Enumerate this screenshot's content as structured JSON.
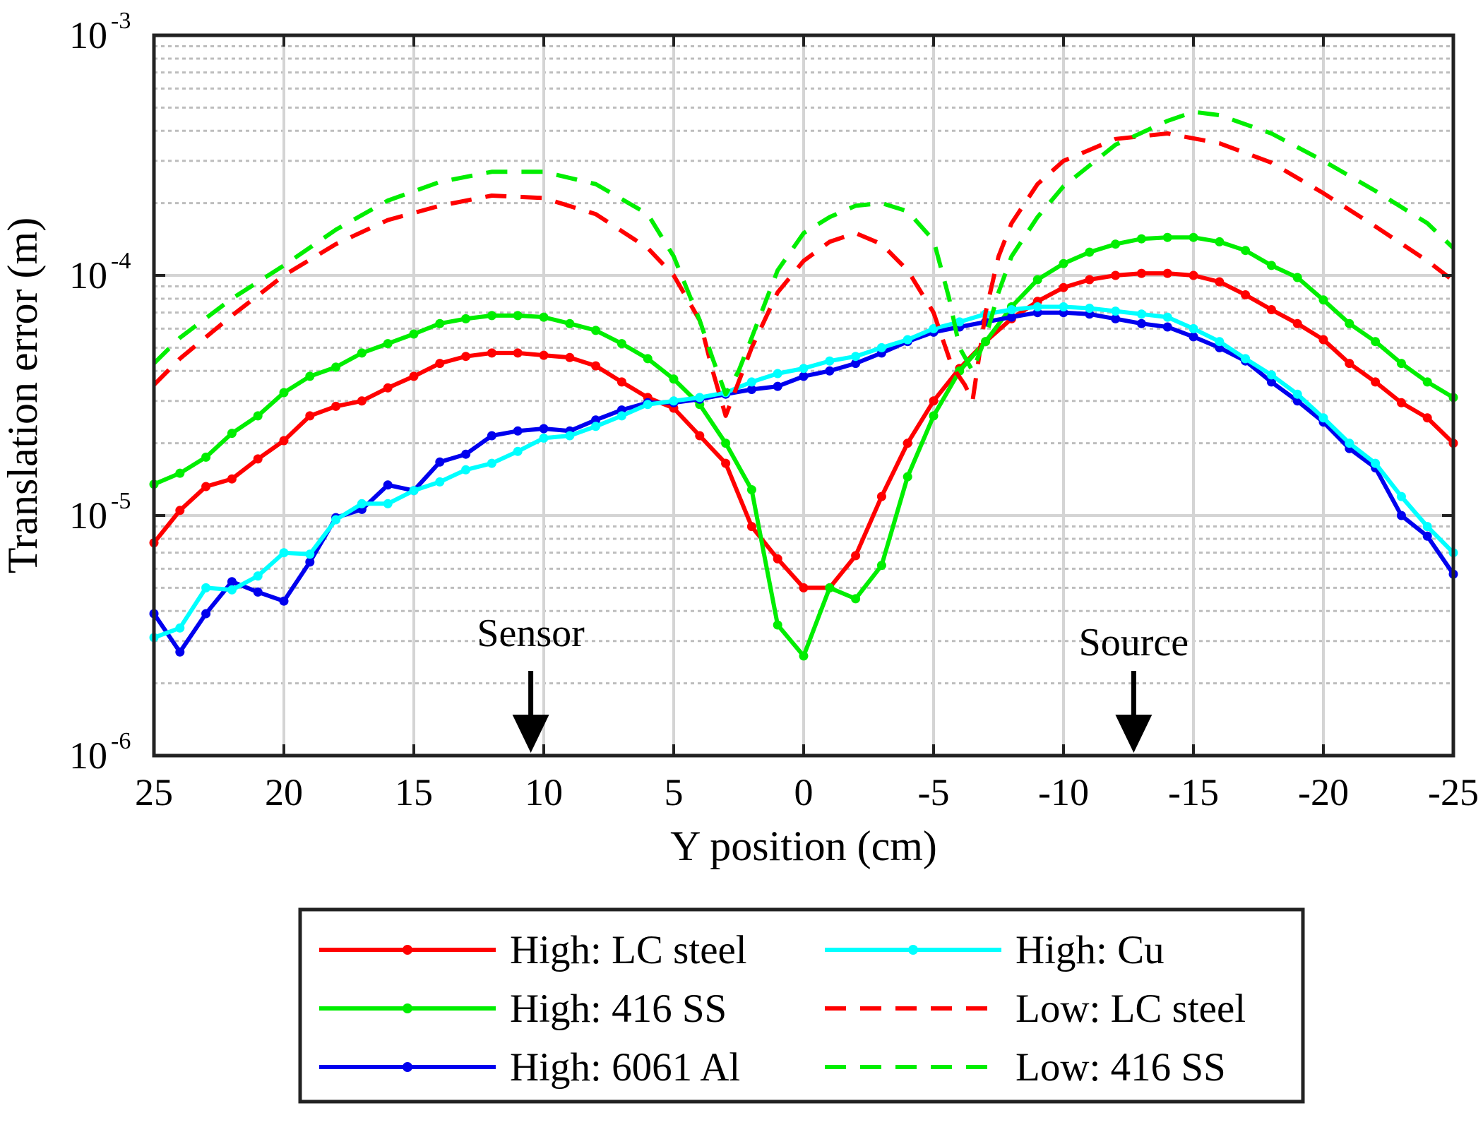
{
  "chart_data": {
    "type": "line",
    "xlabel": "Y position (cm)",
    "ylabel": "Translation error (m)",
    "x_reversed": true,
    "xlim": [
      25,
      -25
    ],
    "ylim": [
      1e-06,
      0.001
    ],
    "y_scale": "log",
    "grid": true,
    "legend_placement": "below plot, two columns",
    "x_ticks": [
      "25",
      "20",
      "15",
      "10",
      "5",
      "0",
      "-5",
      "-10",
      "-15",
      "-20",
      "-25"
    ],
    "x_tick_values": [
      25,
      20,
      15,
      10,
      5,
      0,
      -5,
      -10,
      -15,
      -20,
      -25
    ],
    "y_ticks": [
      {
        "base": "10",
        "exp": "-3",
        "value": 0.001
      },
      {
        "base": "10",
        "exp": "-4",
        "value": 0.0001
      },
      {
        "base": "10",
        "exp": "-5",
        "value": 1e-05
      },
      {
        "base": "10",
        "exp": "-6",
        "value": 1e-06
      }
    ],
    "annotations": [
      {
        "text": "Sensor",
        "x": 10.5
      },
      {
        "text": "Source",
        "x": -12.7
      }
    ],
    "series": [
      {
        "name": "High: LC steel",
        "color": "#ff0000",
        "style": "solid-marker",
        "x": [
          25,
          24,
          23,
          22,
          21,
          20,
          19,
          18,
          17,
          16,
          15,
          14,
          13,
          12,
          11,
          10,
          9,
          8,
          7,
          6,
          5,
          4,
          3,
          2,
          1,
          0,
          -1,
          -2,
          -3,
          -4,
          -5,
          -6,
          -7,
          -8,
          -9,
          -10,
          -11,
          -12,
          -13,
          -14,
          -15,
          -16,
          -17,
          -18,
          -19,
          -20,
          -21,
          -22,
          -23,
          -24,
          -25
        ],
        "y": [
          7.7e-06,
          1.05e-05,
          1.32e-05,
          1.42e-05,
          1.72e-05,
          2.05e-05,
          2.6e-05,
          2.85e-05,
          3e-05,
          3.4e-05,
          3.8e-05,
          4.3e-05,
          4.6e-05,
          4.75e-05,
          4.75e-05,
          4.65e-05,
          4.55e-05,
          4.2e-05,
          3.6e-05,
          3.1e-05,
          2.8e-05,
          2.15e-05,
          1.65e-05,
          9e-06,
          6.6e-06,
          5e-06,
          5e-06,
          6.8e-06,
          1.2e-05,
          2e-05,
          3e-05,
          4.1e-05,
          5.3e-05,
          6.6e-05,
          7.8e-05,
          8.9e-05,
          9.6e-05,
          0.0001,
          0.000102,
          0.000102,
          0.0001,
          9.4e-05,
          8.3e-05,
          7.2e-05,
          6.3e-05,
          5.4e-05,
          4.3e-05,
          3.6e-05,
          2.95e-05,
          2.55e-05,
          2e-05
        ]
      },
      {
        "name": "High: 416 SS",
        "color": "#00ee00",
        "style": "solid-marker",
        "x": [
          25,
          24,
          23,
          22,
          21,
          20,
          19,
          18,
          17,
          16,
          15,
          14,
          13,
          12,
          11,
          10,
          9,
          8,
          7,
          6,
          5,
          4,
          3,
          2,
          1,
          0,
          -1,
          -2,
          -3,
          -4,
          -5,
          -6,
          -7,
          -8,
          -9,
          -10,
          -11,
          -12,
          -13,
          -14,
          -15,
          -16,
          -17,
          -18,
          -19,
          -20,
          -21,
          -22,
          -23,
          -24,
          -25
        ],
        "y": [
          1.35e-05,
          1.5e-05,
          1.75e-05,
          2.2e-05,
          2.6e-05,
          3.25e-05,
          3.8e-05,
          4.15e-05,
          4.75e-05,
          5.2e-05,
          5.7e-05,
          6.3e-05,
          6.6e-05,
          6.8e-05,
          6.8e-05,
          6.7e-05,
          6.3e-05,
          5.9e-05,
          5.2e-05,
          4.5e-05,
          3.7e-05,
          2.9e-05,
          2e-05,
          1.28e-05,
          3.5e-06,
          2.6e-06,
          5e-06,
          4.5e-06,
          6.2e-06,
          1.45e-05,
          2.6e-05,
          4e-05,
          5.3e-05,
          7.4e-05,
          9.6e-05,
          0.000112,
          0.000125,
          0.000135,
          0.000142,
          0.000144,
          0.000144,
          0.000138,
          0.000127,
          0.00011,
          9.8e-05,
          7.9e-05,
          6.3e-05,
          5.3e-05,
          4.3e-05,
          3.6e-05,
          3.1e-05
        ]
      },
      {
        "name": "High: 6061 Al",
        "color": "#0000ee",
        "style": "solid-marker",
        "x": [
          25,
          24,
          23,
          22,
          21,
          20,
          19,
          18,
          17,
          16,
          15,
          14,
          13,
          12,
          11,
          10,
          9,
          8,
          7,
          6,
          5,
          4,
          3,
          2,
          1,
          0,
          -1,
          -2,
          -3,
          -4,
          -5,
          -6,
          -7,
          -8,
          -9,
          -10,
          -11,
          -12,
          -13,
          -14,
          -15,
          -16,
          -17,
          -18,
          -19,
          -20,
          -21,
          -22,
          -23,
          -24,
          -25
        ],
        "y": [
          3.9e-06,
          2.7e-06,
          3.9e-06,
          5.3e-06,
          4.8e-06,
          4.4e-06,
          6.4e-06,
          9.8e-06,
          1.06e-05,
          1.34e-05,
          1.27e-05,
          1.67e-05,
          1.8e-05,
          2.15e-05,
          2.25e-05,
          2.3e-05,
          2.25e-05,
          2.5e-05,
          2.75e-05,
          2.95e-05,
          2.95e-05,
          3.05e-05,
          3.2e-05,
          3.35e-05,
          3.45e-05,
          3.8e-05,
          4e-05,
          4.3e-05,
          4.75e-05,
          5.3e-05,
          5.8e-05,
          6.1e-05,
          6.4e-05,
          6.7e-05,
          7e-05,
          7e-05,
          6.9e-05,
          6.6e-05,
          6.3e-05,
          6.1e-05,
          5.55e-05,
          5e-05,
          4.4e-05,
          3.6e-05,
          3e-05,
          2.45e-05,
          1.9e-05,
          1.58e-05,
          1e-05,
          8.2e-06,
          5.7e-06
        ]
      },
      {
        "name": "High: Cu",
        "color": "#00ffff",
        "style": "solid-marker",
        "x": [
          25,
          24,
          23,
          22,
          21,
          20,
          19,
          18,
          17,
          16,
          15,
          14,
          13,
          12,
          11,
          10,
          9,
          8,
          7,
          6,
          5,
          4,
          3,
          2,
          1,
          0,
          -1,
          -2,
          -3,
          -4,
          -5,
          -6,
          -7,
          -8,
          -9,
          -10,
          -11,
          -12,
          -13,
          -14,
          -15,
          -16,
          -17,
          -18,
          -19,
          -20,
          -21,
          -22,
          -23,
          -24,
          -25
        ],
        "y": [
          3.1e-06,
          3.4e-06,
          5e-06,
          4.9e-06,
          5.6e-06,
          7e-06,
          6.9e-06,
          9.6e-06,
          1.12e-05,
          1.12e-05,
          1.27e-05,
          1.38e-05,
          1.55e-05,
          1.65e-05,
          1.85e-05,
          2.1e-05,
          2.15e-05,
          2.35e-05,
          2.6e-05,
          2.9e-05,
          3e-05,
          3.1e-05,
          3.25e-05,
          3.6e-05,
          3.9e-05,
          4.1e-05,
          4.4e-05,
          4.6e-05,
          5e-05,
          5.4e-05,
          6e-05,
          6.4e-05,
          6.9e-05,
          7.2e-05,
          7.4e-05,
          7.4e-05,
          7.3e-05,
          7.1e-05,
          6.9e-05,
          6.7e-05,
          6e-05,
          5.3e-05,
          4.5e-05,
          3.85e-05,
          3.2e-05,
          2.55e-05,
          2e-05,
          1.65e-05,
          1.2e-05,
          9e-06,
          7e-06
        ]
      },
      {
        "name": "Low: LC steel",
        "color": "#ff0000",
        "style": "dashed",
        "x": [
          25,
          24,
          22,
          20,
          18,
          16,
          14,
          12,
          10,
          8,
          6,
          5,
          4,
          3.5,
          3,
          2,
          1,
          0,
          -1,
          -2,
          -3,
          -4,
          -5,
          -5.7,
          -6.2,
          -6.5,
          -7,
          -7.5,
          -8,
          -9,
          -10,
          -12,
          -14,
          -16,
          -18,
          -20,
          -22,
          -24,
          -25
        ],
        "y": [
          3.5e-05,
          4.5e-05,
          6.8e-05,
          0.0001,
          0.000135,
          0.00017,
          0.000195,
          0.000215,
          0.00021,
          0.00018,
          0.00013,
          0.0001,
          6.5e-05,
          4e-05,
          2.6e-05,
          5e-05,
          8.5e-05,
          0.000115,
          0.000138,
          0.00015,
          0.000135,
          0.000105,
          7e-05,
          4.2e-05,
          3.5e-05,
          3e-05,
          7e-05,
          0.00012,
          0.000165,
          0.00024,
          0.0003,
          0.00037,
          0.00039,
          0.000355,
          0.000295,
          0.00022,
          0.00016,
          0.000115,
          9.5e-05
        ]
      },
      {
        "name": "Low: 416 SS",
        "color": "#00ee00",
        "style": "dashed",
        "x": [
          25,
          24,
          22,
          20,
          18,
          16,
          14,
          12,
          10,
          8,
          6,
          5,
          4,
          3.5,
          3,
          2.5,
          2,
          1,
          0,
          -1,
          -2,
          -3,
          -4,
          -5,
          -5.6,
          -6,
          -6.5,
          -7,
          -7.5,
          -8,
          -9,
          -10,
          -12,
          -14,
          -15,
          -16,
          -18,
          -20,
          -22,
          -24,
          -25
        ],
        "y": [
          4.3e-05,
          5.5e-05,
          8e-05,
          0.00011,
          0.000155,
          0.000205,
          0.000245,
          0.00027,
          0.00027,
          0.00024,
          0.00018,
          0.00012,
          6.5e-05,
          4.5e-05,
          3.2e-05,
          4e-05,
          5.5e-05,
          0.000105,
          0.00015,
          0.000175,
          0.000195,
          0.0002,
          0.000185,
          0.00014,
          8e-05,
          5e-05,
          4e-05,
          5.5e-05,
          8.5e-05,
          0.00012,
          0.000175,
          0.000235,
          0.00035,
          0.00044,
          0.00048,
          0.000465,
          0.00039,
          0.0003,
          0.000225,
          0.000165,
          0.00013
        ]
      }
    ]
  },
  "legend": {
    "items": [
      {
        "label": "High: LC steel",
        "color": "#ff0000",
        "style": "solid-marker"
      },
      {
        "label": "High: 416 SS",
        "color": "#00ee00",
        "style": "solid-marker"
      },
      {
        "label": "High: 6061 Al",
        "color": "#0000ee",
        "style": "solid-marker"
      },
      {
        "label": "High: Cu",
        "color": "#00ffff",
        "style": "solid-marker"
      },
      {
        "label": "Low: LC steel",
        "color": "#ff0000",
        "style": "dashed"
      },
      {
        "label": "Low: 416 SS",
        "color": "#00ee00",
        "style": "dashed"
      }
    ]
  }
}
